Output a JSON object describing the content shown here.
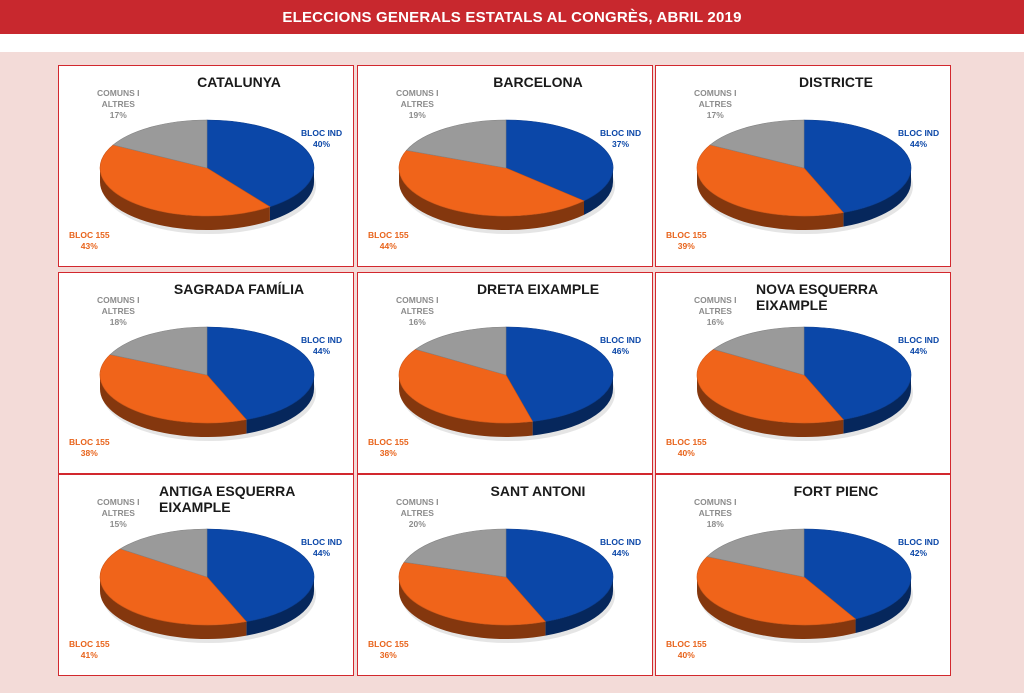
{
  "header": {
    "title": "ELECCIONS GENERALS ESTATALS AL CONGRÈS, ABRIL 2019"
  },
  "colors": {
    "header_bg": "#c8282e",
    "bloc_ind": "#0b47a8",
    "bloc_155": "#f0641a",
    "comuns": "#9a9a9a"
  },
  "labels": {
    "comuns_line1": "COMUNS I",
    "comuns_line2": "ALTRES",
    "bloc_ind": "BLOC IND",
    "bloc_155": "BLOC 155"
  },
  "chart_data": [
    {
      "type": "pie",
      "title": "CATALUNYA",
      "categories": [
        "BLOC IND",
        "BLOC 155",
        "COMUNS I ALTRES"
      ],
      "values": [
        40,
        43,
        17
      ],
      "value_labels": [
        "40%",
        "43%",
        "17%"
      ]
    },
    {
      "type": "pie",
      "title": "BARCELONA",
      "categories": [
        "BLOC IND",
        "BLOC 155",
        "COMUNS I ALTRES"
      ],
      "values": [
        37,
        44,
        19
      ],
      "value_labels": [
        "37%",
        "44%",
        "19%"
      ]
    },
    {
      "type": "pie",
      "title": "DISTRICTE",
      "categories": [
        "BLOC IND",
        "BLOC 155",
        "COMUNS I ALTRES"
      ],
      "values": [
        44,
        39,
        17
      ],
      "value_labels": [
        "44%",
        "39%",
        "17%"
      ]
    },
    {
      "type": "pie",
      "title": "SAGRADA FAMÍLIA",
      "categories": [
        "BLOC IND",
        "BLOC 155",
        "COMUNS I ALTRES"
      ],
      "values": [
        44,
        38,
        18
      ],
      "value_labels": [
        "44%",
        "38%",
        "18%"
      ]
    },
    {
      "type": "pie",
      "title": "DRETA EIXAMPLE",
      "categories": [
        "BLOC IND",
        "BLOC 155",
        "COMUNS I ALTRES"
      ],
      "values": [
        46,
        38,
        16
      ],
      "value_labels": [
        "46%",
        "38%",
        "16%"
      ]
    },
    {
      "type": "pie",
      "title": "NOVA ESQUERRA EIXAMPLE",
      "categories": [
        "BLOC IND",
        "BLOC 155",
        "COMUNS I ALTRES"
      ],
      "values": [
        44,
        40,
        16
      ],
      "value_labels": [
        "44%",
        "40%",
        "16%"
      ]
    },
    {
      "type": "pie",
      "title": "ANTIGA ESQUERRA EIXAMPLE",
      "categories": [
        "BLOC IND",
        "BLOC 155",
        "COMUNS I ALTRES"
      ],
      "values": [
        44,
        41,
        15
      ],
      "value_labels": [
        "44%",
        "41%",
        "15%"
      ]
    },
    {
      "type": "pie",
      "title": "SANT ANTONI",
      "categories": [
        "BLOC IND",
        "BLOC 155",
        "COMUNS I ALTRES"
      ],
      "values": [
        44,
        36,
        20
      ],
      "value_labels": [
        "44%",
        "36%",
        "20%"
      ]
    },
    {
      "type": "pie",
      "title": "FORT PIENC",
      "categories": [
        "BLOC IND",
        "BLOC 155",
        "COMUNS I ALTRES"
      ],
      "values": [
        42,
        40,
        18
      ],
      "value_labels": [
        "42%",
        "40%",
        "18%"
      ]
    }
  ]
}
